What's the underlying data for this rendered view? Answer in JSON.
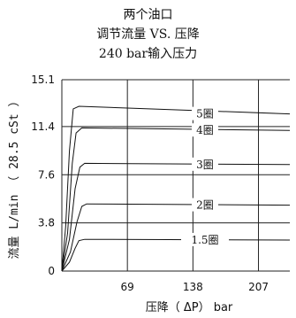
{
  "chart_data": {
    "type": "line",
    "title_lines": [
      "两个油口",
      "调节流量 VS. 压降",
      "240 bar输入压力"
    ],
    "xlabel": "压降（ ΔP） bar",
    "ylabel": "流量 L/min （ 28.5 cSt ）",
    "x_ticks": [
      "69",
      "138",
      "207"
    ],
    "y_ticks": [
      "0",
      "3.8",
      "7.6",
      "11.4",
      "15.1"
    ],
    "xlim": [
      0,
      240
    ],
    "ylim": [
      0,
      15.1
    ],
    "grid": true,
    "series": [
      {
        "name": "5圈",
        "x": [
          0,
          4,
          8,
          12,
          18,
          240
        ],
        "y": [
          0,
          3.5,
          9.5,
          12.8,
          13.0,
          12.4
        ]
      },
      {
        "name": "4圈",
        "x": [
          0,
          6,
          11,
          15,
          21,
          240
        ],
        "y": [
          0,
          3.0,
          8.5,
          10.9,
          11.3,
          11.1
        ]
      },
      {
        "name": "3圈",
        "x": [
          0,
          8,
          14,
          19,
          24,
          240
        ],
        "y": [
          0,
          2.5,
          6.5,
          8.2,
          8.5,
          8.4
        ]
      },
      {
        "name": "2圈",
        "x": [
          0,
          9,
          16,
          21,
          26,
          240
        ],
        "y": [
          0,
          1.5,
          3.9,
          5.1,
          5.3,
          5.2
        ]
      },
      {
        "name": "1.5圈",
        "x": [
          0,
          8,
          14,
          18,
          24,
          240
        ],
        "y": [
          0,
          0.7,
          1.8,
          2.4,
          2.5,
          2.45
        ]
      }
    ]
  }
}
